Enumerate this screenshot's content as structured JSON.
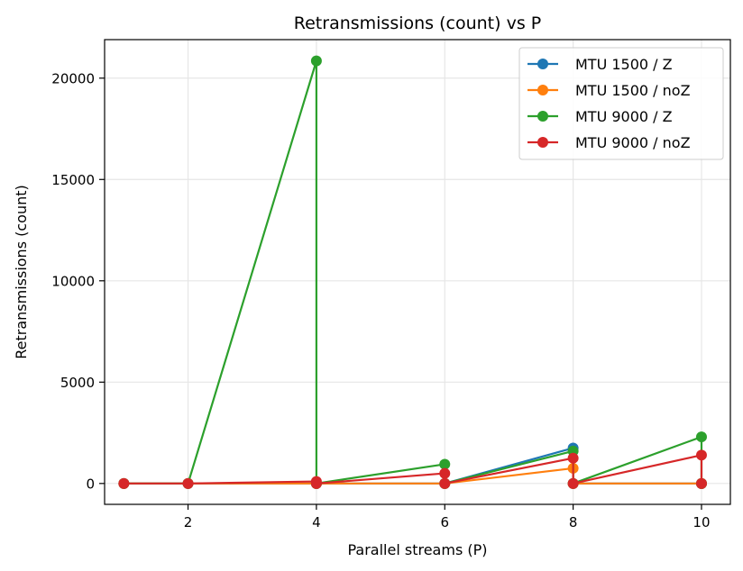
{
  "chart_data": {
    "type": "line",
    "title": "Retransmissions (count) vs P",
    "xlabel": "Parallel streams (P)",
    "ylabel": "Retransmissions (count)",
    "xlim": [
      0.7,
      10.45
    ],
    "ylim": [
      -1030,
      21900
    ],
    "xticks": [
      2,
      4,
      6,
      8,
      10
    ],
    "yticks": [
      0,
      5000,
      10000,
      15000,
      20000
    ],
    "grid": true,
    "legend_position": "top-right",
    "series": [
      {
        "name": "MTU 1500 / Z",
        "color": "#1f77b4",
        "x": [
          1,
          2,
          4,
          4,
          6,
          6,
          8,
          8,
          10,
          10
        ],
        "y": [
          0,
          0,
          0,
          0,
          0,
          0,
          1750,
          0,
          0,
          0
        ]
      },
      {
        "name": "MTU 1500 / noZ",
        "color": "#ff7f0e",
        "x": [
          1,
          2,
          4,
          4,
          6,
          6,
          8,
          8,
          10,
          10
        ],
        "y": [
          0,
          0,
          0,
          0,
          0,
          0,
          750,
          0,
          0,
          0
        ]
      },
      {
        "name": "MTU 9000 / Z",
        "color": "#2ca02c",
        "x": [
          1,
          2,
          4,
          4,
          6,
          6,
          8,
          8,
          10,
          10
        ],
        "y": [
          0,
          0,
          20850,
          0,
          950,
          0,
          1600,
          0,
          2300,
          0
        ]
      },
      {
        "name": "MTU 9000 / noZ",
        "color": "#d62728",
        "x": [
          1,
          2,
          4,
          4,
          6,
          6,
          8,
          8,
          10,
          10
        ],
        "y": [
          0,
          0,
          100,
          0,
          500,
          0,
          1250,
          0,
          1400,
          0
        ]
      }
    ]
  }
}
